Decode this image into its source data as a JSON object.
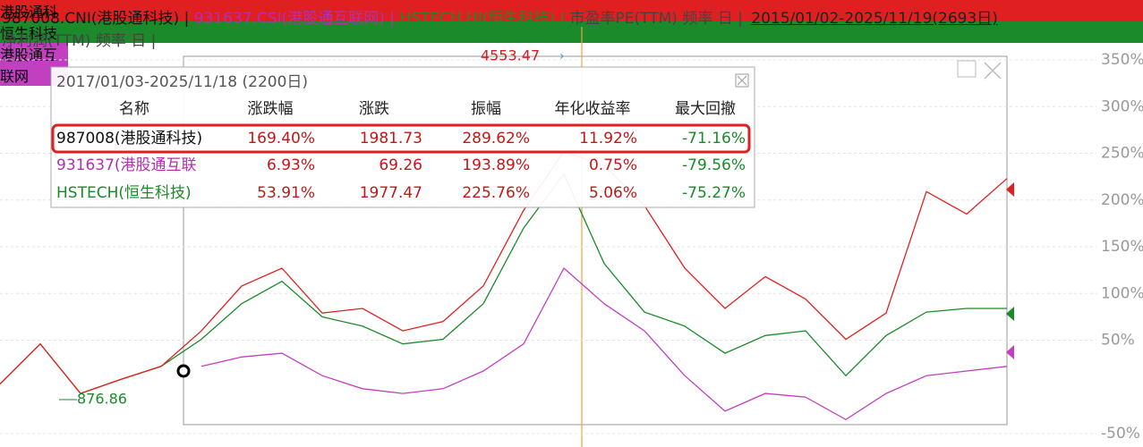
{
  "chart_data": {
    "type": "line",
    "header": {
      "line1": [
        {
          "text": "987008.CNI(港股通科技) | ",
          "color": "#111111"
        },
        {
          "text": "931637.CSI(港股通互联网) | ",
          "color": "#b030b0"
        },
        {
          "text": "HSTECH.HI(恒生科技) | ",
          "color": "#1a8a2a"
        },
        {
          "text": "市盈率PE(TTM) 频率 日 | ",
          "color": "#444444"
        }
      ],
      "range": "2015/01/02-2025/11/19(2693日)",
      "line2": "净利润(TTM) 频率 日 |"
    },
    "ylim": [
      -50,
      360
    ],
    "yticks": [
      {
        "value": 350,
        "label": "350%"
      },
      {
        "value": 300,
        "label": "300%"
      },
      {
        "value": 250,
        "label": "250%"
      },
      {
        "value": 200,
        "label": "200%"
      },
      {
        "value": 150,
        "label": "150%"
      },
      {
        "value": 100,
        "label": "100%"
      },
      {
        "value": 50,
        "label": "50%"
      },
      {
        "value": -50,
        "label": "-50%"
      }
    ],
    "grid": true,
    "series": [
      {
        "name": "港股通科",
        "color": "#e02020",
        "values": [
          3,
          46,
          -7,
          8,
          22,
          60,
          108,
          127,
          79,
          84,
          60,
          70,
          108,
          189,
          252,
          237,
          194,
          127,
          84,
          118,
          94,
          51,
          79,
          209,
          185,
          223
        ]
      },
      {
        "name": "恒生科技",
        "color": "#1a8a2a",
        "values": [
          3,
          46,
          -7,
          8,
          22,
          51,
          89,
          113,
          75,
          65,
          46,
          51,
          89,
          170,
          228,
          132,
          80,
          65,
          36,
          55,
          60,
          12,
          55,
          80,
          84,
          84
        ]
      },
      {
        "name": "港股通互联网",
        "color": "#c040c0",
        "values": [
          null,
          null,
          null,
          null,
          null,
          22,
          32,
          36,
          12,
          -2,
          -7,
          -2,
          17,
          46,
          127,
          89,
          60,
          12,
          -26,
          -7,
          -11,
          -35,
          -7,
          12,
          17,
          22
        ]
      }
    ],
    "annotations": [
      {
        "text": "4553.47",
        "color": "#d42020"
      },
      {
        "text": "876.86",
        "color": "#1a8a2a"
      }
    ],
    "stats": {
      "period": "2017/01/03-2025/11/18 (2200日)",
      "columns": [
        "名称",
        "涨跌幅",
        "涨跌",
        "振幅",
        "年化收益率",
        "最大回撤"
      ],
      "rows": [
        [
          "987008(港股通科技)",
          "169.40%",
          "1981.73",
          "289.62%",
          "11.92%",
          "-71.16%"
        ],
        [
          "931637(港股通互联",
          "6.93%",
          "69.26",
          "193.89%",
          "0.75%",
          "-79.56%"
        ],
        [
          "HSTECH(恒生科技)",
          "53.91%",
          "1977.47",
          "225.76%",
          "5.06%",
          "-75.27%"
        ]
      ],
      "row_colors": [
        "#111111",
        "#b030b0",
        "#1a8a2a"
      ]
    }
  }
}
